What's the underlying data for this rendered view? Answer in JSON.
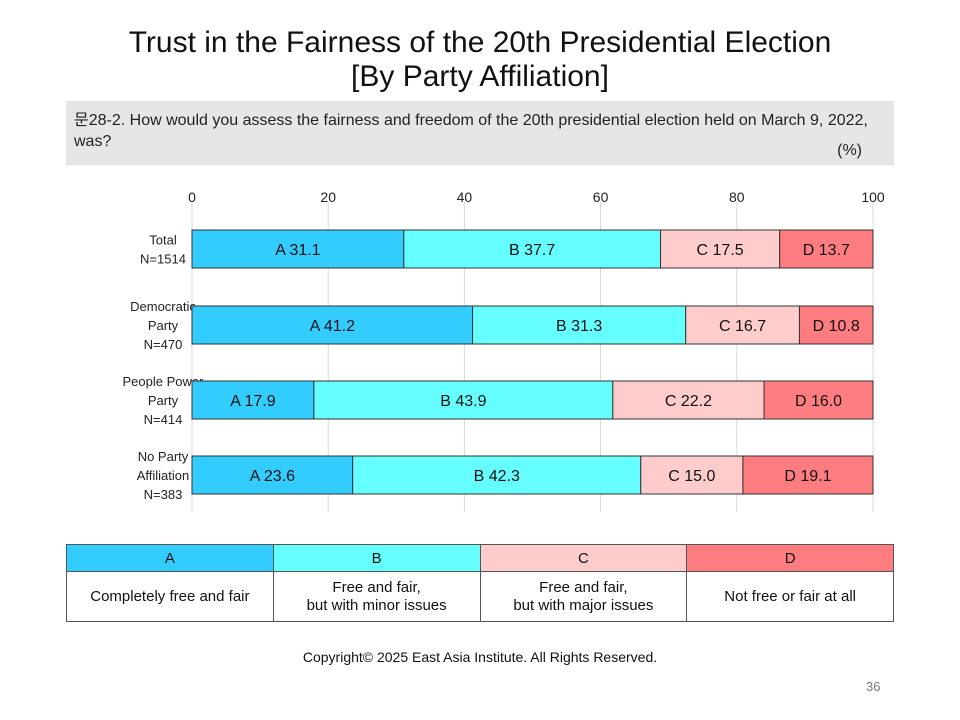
{
  "title_line1": "Trust in the Fairness of the 20th Presidential Election",
  "title_line2": "[By Party Affiliation]",
  "question": "문28-2. How would you assess the fairness and freedom of the 20th presidential election held on March 9, 2022, was?",
  "unit": "(%)",
  "colors": {
    "A": "#33ccff",
    "B": "#66ffff",
    "C": "#ffcccc",
    "D": "#ff7c80"
  },
  "chart_data": {
    "type": "bar",
    "orientation": "horizontal",
    "stacked": true,
    "xlim": [
      0,
      100
    ],
    "x_ticks": [
      "0",
      "20",
      "40",
      "60",
      "80",
      "100"
    ],
    "grid": true,
    "categories": [
      [
        "Total",
        "N=1514"
      ],
      [
        "Democratic",
        "Party",
        "N=470"
      ],
      [
        "People Power",
        "Party",
        "N=414"
      ],
      [
        "No Party",
        "Affiliation",
        "N=383"
      ]
    ],
    "series": [
      {
        "name": "A",
        "values": [
          31.1,
          41.2,
          17.9,
          23.6
        ]
      },
      {
        "name": "B",
        "values": [
          37.7,
          31.3,
          43.9,
          42.3
        ]
      },
      {
        "name": "C",
        "values": [
          17.5,
          16.7,
          22.2,
          15.0
        ]
      },
      {
        "name": "D",
        "values": [
          13.7,
          10.8,
          16.0,
          19.1
        ]
      }
    ]
  },
  "legend": [
    {
      "key": "A",
      "text1": "Completely free and fair",
      "text2": ""
    },
    {
      "key": "B",
      "text1": "Free and fair,",
      "text2": "but with minor issues"
    },
    {
      "key": "C",
      "text1": "Free and fair,",
      "text2": "but with major issues"
    },
    {
      "key": "D",
      "text1": "Not free or fair  at all",
      "text2": ""
    }
  ],
  "copyright": "Copyright© 2025 East Asia Institute. All Rights Reserved.",
  "page_number": "36"
}
